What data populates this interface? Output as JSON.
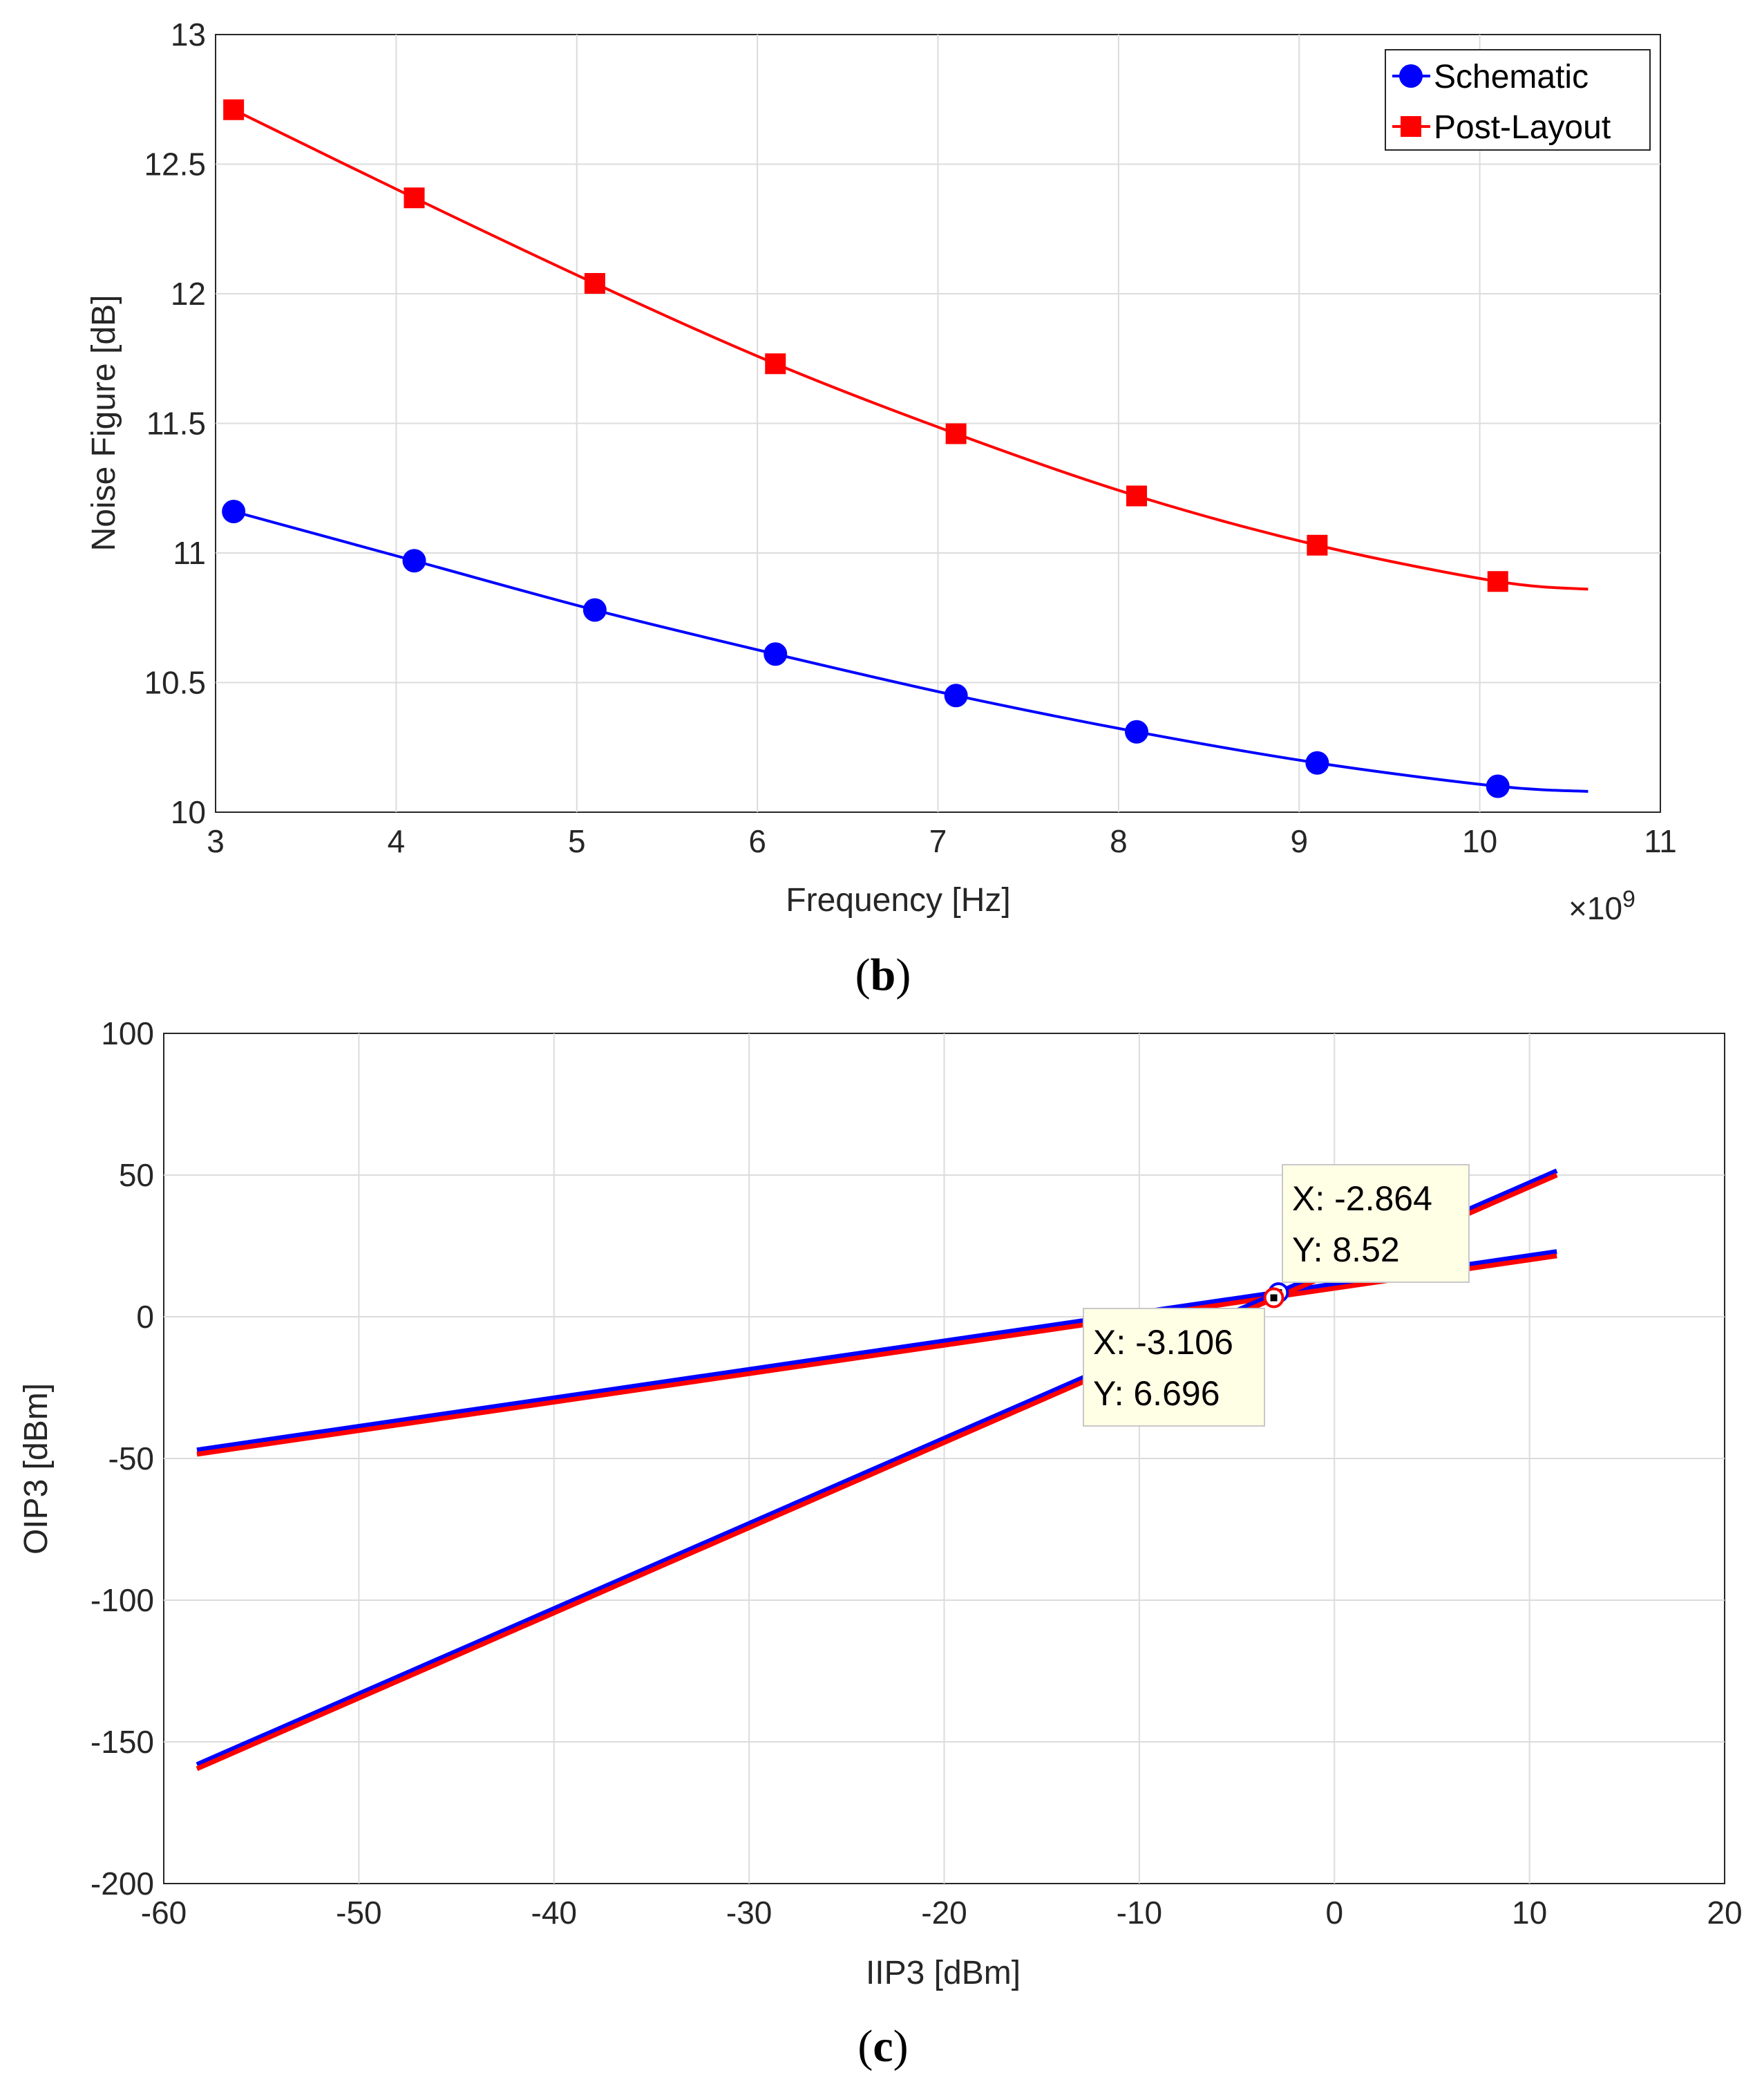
{
  "chart_data": [
    {
      "type": "line",
      "panel_label": "b",
      "xlabel": "Frequency [Hz]",
      "ylabel": "Noise Figure [dB]",
      "x_exponent_base": "×10",
      "x_exponent_power": "9",
      "xlim": [
        3,
        11
      ],
      "ylim": [
        10,
        13
      ],
      "xticks": [
        3,
        4,
        5,
        6,
        7,
        8,
        9,
        10,
        11
      ],
      "yticks": [
        "10",
        "10.5",
        "11",
        "11.5",
        "12",
        "12.5",
        "13"
      ],
      "grid": true,
      "legend_position": "top-right",
      "series": [
        {
          "name": "Schematic",
          "color": "#0000ff",
          "marker": "circle",
          "x": [
            3.1,
            4.1,
            5.1,
            6.1,
            7.1,
            8.1,
            9.1,
            10.1
          ],
          "y": [
            11.16,
            10.97,
            10.78,
            10.61,
            10.45,
            10.31,
            10.19,
            10.1
          ],
          "curve_end": [
            10.6,
            10.08
          ]
        },
        {
          "name": "Post-Layout",
          "color": "#ff0000",
          "marker": "square",
          "x": [
            3.1,
            4.1,
            5.1,
            6.1,
            7.1,
            8.1,
            9.1,
            10.1
          ],
          "y": [
            12.71,
            12.37,
            12.04,
            11.73,
            11.46,
            11.22,
            11.03,
            10.89
          ],
          "curve_end": [
            10.6,
            10.86
          ]
        }
      ]
    },
    {
      "type": "line",
      "panel_label": "c",
      "xlabel": "IIP3 [dBm]",
      "ylabel": "OIP3 [dBm]",
      "xlim": [
        -60,
        20
      ],
      "ylim": [
        -200,
        100
      ],
      "xticks": [
        -60,
        -50,
        -40,
        -30,
        -20,
        -10,
        0,
        10,
        20
      ],
      "yticks": [
        -200,
        -150,
        -100,
        -50,
        0,
        50,
        100
      ],
      "grid": true,
      "series": [
        {
          "color": "#0000ff",
          "x": [
            -58.3,
            11.4
          ],
          "y": [
            -47.0,
            23.0
          ]
        },
        {
          "color": "#ff0000",
          "x": [
            -58.3,
            11.4
          ],
          "y": [
            -48.5,
            21.5
          ]
        },
        {
          "color": "#0000ff",
          "x": [
            -58.3,
            11.4
          ],
          "y": [
            -158.0,
            51.5
          ]
        },
        {
          "color": "#ff0000",
          "x": [
            -58.3,
            11.4
          ],
          "y": [
            -159.5,
            50.0
          ]
        }
      ],
      "datatips": [
        {
          "x_text": "X: -2.864",
          "y_text": "Y: 8.52",
          "x": -2.864,
          "y": 8.52,
          "marker_color": "#0000ff"
        },
        {
          "x_text": "X: -3.106",
          "y_text": "Y: 6.696",
          "x": -3.106,
          "y": 6.696,
          "marker_color": "#ff0000"
        }
      ]
    }
  ]
}
